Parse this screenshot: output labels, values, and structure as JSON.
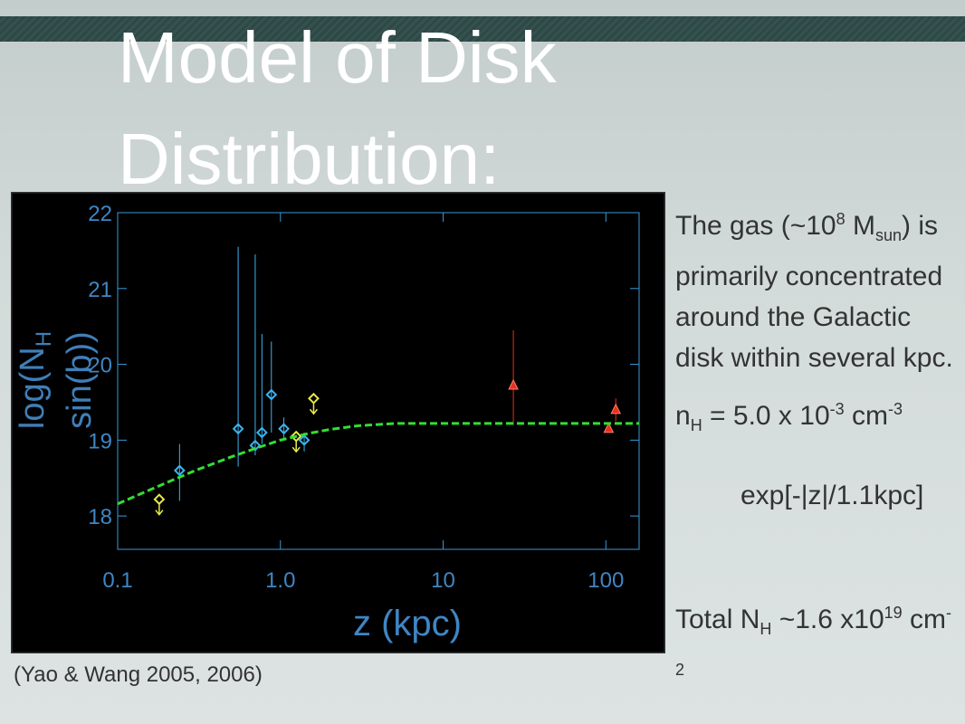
{
  "title": "Model of Disk Distribution:",
  "chart_data": {
    "type": "scatter",
    "xlabel": "z (kpc)",
    "ylabel": [
      "log(N",
      "H",
      "sin(b))"
    ],
    "xlog": true,
    "xlim": [
      0.1,
      160
    ],
    "ylim": [
      17.56,
      22
    ],
    "xticks": [
      0.1,
      {
        "value": 1,
        "label": "1.0"
      },
      10,
      100
    ],
    "yticks": [
      18,
      19,
      20,
      21,
      22
    ],
    "series": [
      {
        "marker": "diamond",
        "color": "#3cb4ee",
        "x": [
          0.24,
          0.55,
          0.7,
          0.77,
          0.88,
          1.05,
          1.4
        ],
        "values": [
          18.6,
          19.15,
          18.93,
          19.1,
          19.6,
          19.15,
          19.0
        ],
        "lower": [
          18.2,
          18.65,
          18.8,
          18.95,
          19.1,
          19.0,
          18.85
        ],
        "upper": [
          18.95,
          21.55,
          21.45,
          20.4,
          20.3,
          19.3,
          19.1
        ]
      },
      {
        "marker": "diamond",
        "upper_limit": true,
        "color": "#e8e84a",
        "x": [
          0.18,
          1.25,
          1.6
        ],
        "values": [
          18.22,
          19.05,
          19.55
        ]
      },
      {
        "marker": "triangle",
        "color": "#e83020",
        "x": [
          27,
          104,
          115
        ],
        "values": [
          19.72,
          19.15,
          19.4
        ],
        "lower": [
          19.2,
          19.1,
          19.25
        ],
        "upper": [
          20.45,
          19.2,
          19.55
        ]
      },
      {
        "marker": "line",
        "dashed": true,
        "color": "#33dd33",
        "x": [
          0.1,
          0.2,
          0.3,
          0.5,
          0.7,
          1,
          1.5,
          2,
          3,
          5,
          10,
          20,
          50,
          100,
          160
        ],
        "values": [
          18.16,
          18.44,
          18.6,
          18.78,
          18.89,
          19.0,
          19.09,
          19.14,
          19.19,
          19.22,
          19.22,
          19.22,
          19.22,
          19.22,
          19.22
        ]
      }
    ]
  },
  "citation": "(Yao & Wang 2005, 2006)",
  "notes": {
    "gas": [
      "The gas (~10",
      "8",
      "M",
      "sun",
      ") is primarily concentrated around the Galactic disk within several kpc."
    ],
    "density": [
      "n",
      "H",
      "= 5.0 x 10",
      "-3",
      "cm",
      "-3",
      "exp[-|z|/1.1kpc]"
    ],
    "total": [
      "Total N",
      "H",
      "~1.6 x10",
      "19",
      "cm",
      "-2"
    ]
  }
}
